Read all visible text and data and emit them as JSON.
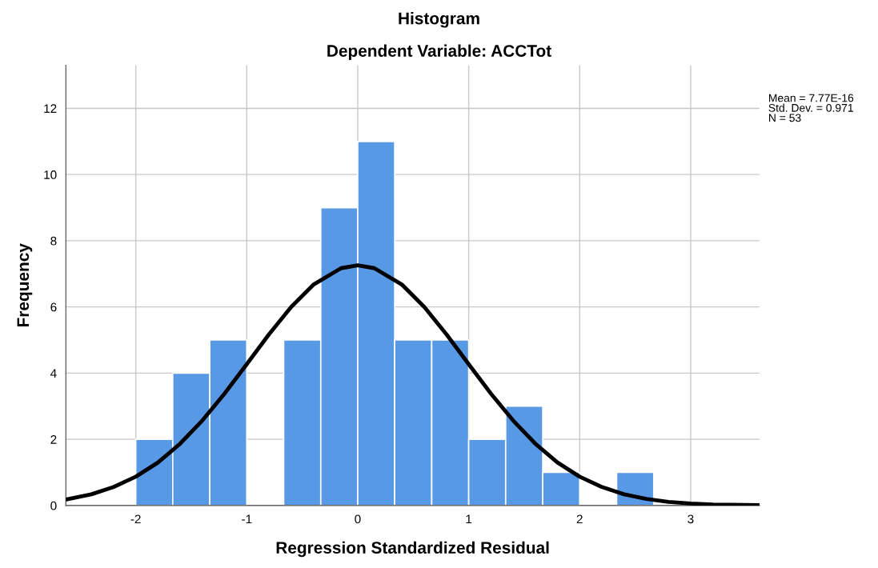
{
  "chart_data": {
    "type": "histogram",
    "title": "Histogram",
    "subtitle": "Dependent Variable: ACCTot",
    "xlabel": "Regression Standardized Residual",
    "ylabel": "Frequency",
    "bins": [
      -2,
      -1.667,
      -1.333,
      -1,
      -0.667,
      -0.333,
      0,
      0.333,
      0.667,
      1,
      1.333,
      1.667,
      2,
      2.333,
      2.667
    ],
    "values": [
      2,
      4,
      5,
      0,
      5,
      9,
      11,
      5,
      5,
      2,
      3,
      1,
      0,
      1
    ],
    "color": "#5799e5",
    "series": [
      {
        "type": "line",
        "color": "#000000",
        "x": [
          -2.63,
          -2.4,
          -2.2,
          -2.0,
          -1.8,
          -1.6,
          -1.4,
          -1.2,
          -1.0,
          -0.8,
          -0.6,
          -0.4,
          -0.15,
          0,
          0.15,
          0.4,
          0.6,
          0.8,
          1.0,
          1.2,
          1.4,
          1.6,
          1.8,
          2.0,
          2.2,
          2.4,
          2.6,
          2.8,
          3.0,
          3.2,
          3.62
        ],
        "values": [
          0.18,
          0.34,
          0.56,
          0.87,
          1.3,
          1.87,
          2.57,
          3.38,
          4.27,
          5.17,
          6.0,
          6.67,
          7.17,
          7.26,
          7.17,
          6.67,
          6.0,
          5.17,
          4.27,
          3.38,
          2.57,
          1.87,
          1.3,
          0.87,
          0.56,
          0.34,
          0.2,
          0.11,
          0.06,
          0.03,
          0.01
        ]
      }
    ],
    "xlim": [
      -2.63,
      3.62
    ],
    "ylim": [
      0,
      13.3
    ],
    "xticks": [
      -2,
      -1,
      0,
      1,
      2,
      3
    ],
    "yticks": [
      0,
      2,
      4,
      6,
      8,
      10,
      12
    ],
    "grid": true,
    "annotations": [
      "Mean = 7.77E-16\nStd. Dev. = 0.971\nN = 53"
    ]
  }
}
